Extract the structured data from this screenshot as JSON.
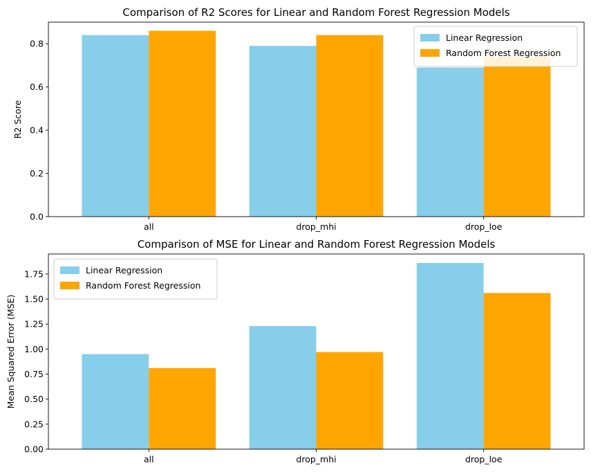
{
  "chart_data": [
    {
      "type": "bar",
      "title": "Comparison of R2 Scores for Linear and Random Forest Regression Models",
      "xlabel": "",
      "ylabel": "R2 Score",
      "categories": [
        "all",
        "drop_mhi",
        "drop_loe"
      ],
      "series": [
        {
          "name": "Linear Regression",
          "color": "#87CEEB",
          "values": [
            0.84,
            0.79,
            0.69
          ]
        },
        {
          "name": "Random Forest Regression",
          "color": "#FFA500",
          "values": [
            0.86,
            0.84,
            0.74
          ]
        }
      ],
      "ylim": [
        0,
        0.9
      ],
      "yticks": [
        0.0,
        0.2,
        0.4,
        0.6,
        0.8
      ],
      "ytick_labels": [
        "0.0",
        "0.2",
        "0.4",
        "0.6",
        "0.8"
      ],
      "legend": "top-right",
      "grid": false
    },
    {
      "type": "bar",
      "title": "Comparison of MSE for Linear and Random Forest Regression Models",
      "xlabel": "",
      "ylabel": "Mean Squared Error (MSE)",
      "categories": [
        "all",
        "drop_mhi",
        "drop_loe"
      ],
      "series": [
        {
          "name": "Linear Regression",
          "color": "#87CEEB",
          "values": [
            0.95,
            1.23,
            1.86
          ]
        },
        {
          "name": "Random Forest Regression",
          "color": "#FFA500",
          "values": [
            0.81,
            0.97,
            1.56
          ]
        }
      ],
      "ylim": [
        0,
        1.95
      ],
      "yticks": [
        0.0,
        0.25,
        0.5,
        0.75,
        1.0,
        1.25,
        1.5,
        1.75
      ],
      "ytick_labels": [
        "0.00",
        "0.25",
        "0.50",
        "0.75",
        "1.00",
        "1.25",
        "1.50",
        "1.75"
      ],
      "legend": "top-left",
      "grid": false
    }
  ]
}
